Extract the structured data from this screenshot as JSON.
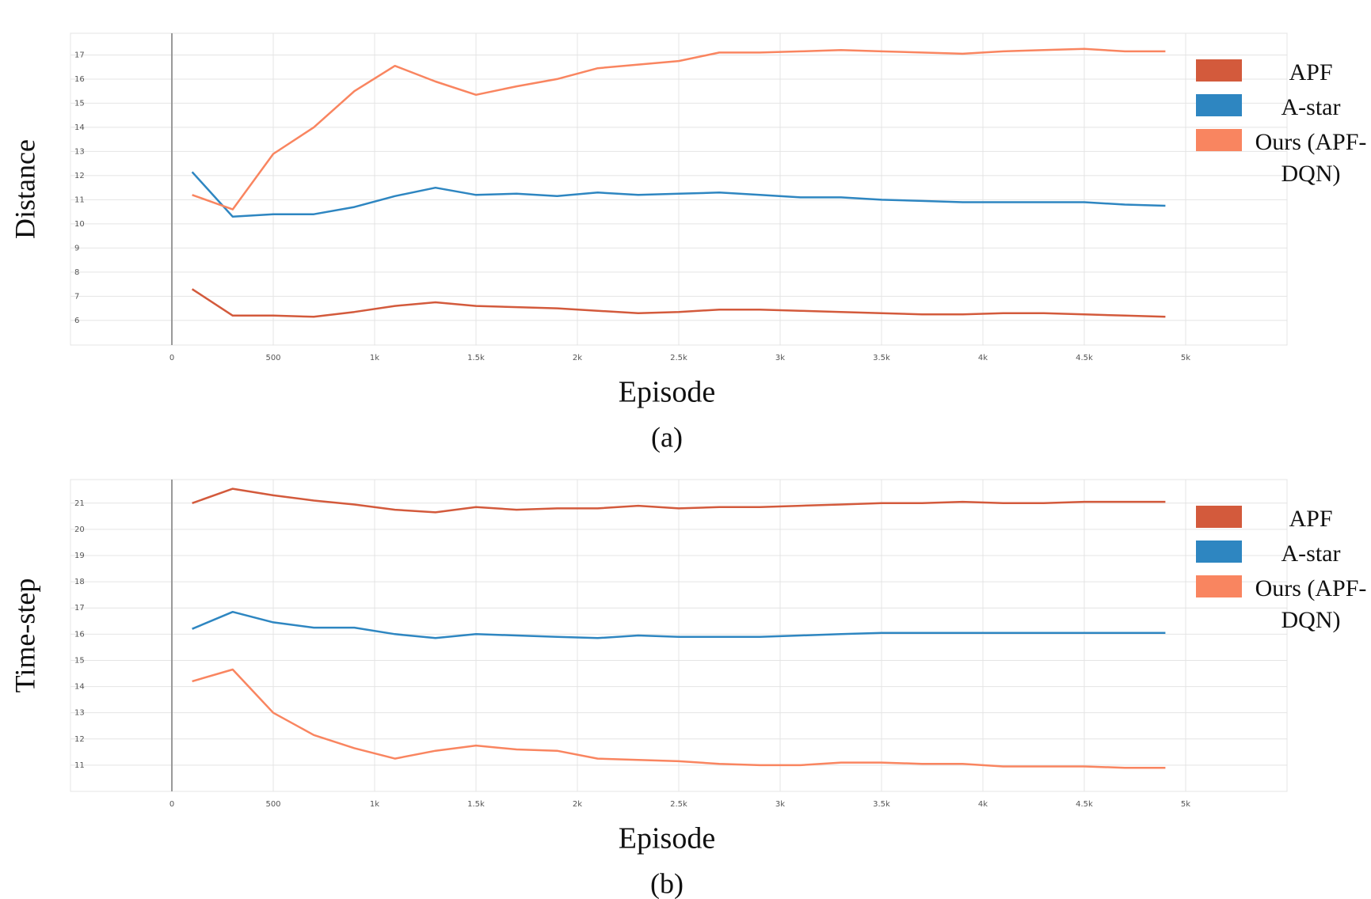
{
  "chart_data": [
    {
      "type": "line",
      "x_label": "Episode",
      "y_label": "Distance",
      "caption": "(a)",
      "x": [
        100,
        300,
        500,
        700,
        900,
        1100,
        1300,
        1500,
        1700,
        1900,
        2100,
        2300,
        2500,
        2700,
        2900,
        3100,
        3300,
        3500,
        3700,
        3900,
        4100,
        4300,
        4500,
        4700,
        4900
      ],
      "xlim": [
        -500,
        5500
      ],
      "ylim": [
        4.98,
        17.9
      ],
      "xticks": [
        0,
        500,
        {
          "value": 1000,
          "label": "1k"
        },
        {
          "value": 1500,
          "label": "1.5k"
        },
        {
          "value": 2000,
          "label": "2k"
        },
        {
          "value": 2500,
          "label": "2.5k"
        },
        {
          "value": 3000,
          "label": "3k"
        },
        {
          "value": 3500,
          "label": "3.5k"
        },
        {
          "value": 4000,
          "label": "4k"
        },
        {
          "value": 4500,
          "label": "4.5k"
        },
        {
          "value": 5000,
          "label": "5k"
        }
      ],
      "yticks": [
        6,
        7,
        8,
        9,
        10,
        11,
        12,
        13,
        14,
        15,
        16,
        17
      ],
      "grid": true,
      "series": [
        {
          "name": "APF",
          "color": "#d35a3c",
          "values": [
            7.3,
            6.2,
            6.2,
            6.15,
            6.35,
            6.6,
            6.75,
            6.6,
            6.55,
            6.5,
            6.4,
            6.3,
            6.35,
            6.45,
            6.45,
            6.4,
            6.35,
            6.3,
            6.25,
            6.25,
            6.3,
            6.3,
            6.25,
            6.2,
            6.15
          ]
        },
        {
          "name": "A-star",
          "color": "#2e86c1",
          "values": [
            12.15,
            10.3,
            10.4,
            10.4,
            10.7,
            11.15,
            11.5,
            11.2,
            11.25,
            11.15,
            11.3,
            11.2,
            11.25,
            11.3,
            11.2,
            11.1,
            11.1,
            11.0,
            10.95,
            10.9,
            10.9,
            10.9,
            10.9,
            10.8,
            10.75
          ]
        },
        {
          "name": "Ours (APF-DQN)",
          "color": "#f98560",
          "values": [
            11.2,
            10.6,
            12.9,
            14.0,
            15.5,
            16.55,
            15.9,
            15.35,
            15.7,
            16.0,
            16.45,
            16.6,
            16.75,
            17.1,
            17.1,
            17.15,
            17.2,
            17.15,
            17.1,
            17.05,
            17.15,
            17.2,
            17.25,
            17.15,
            17.15
          ]
        }
      ]
    },
    {
      "type": "line",
      "x_label": "Episode",
      "y_label": "Time-step",
      "caption": "(b)",
      "x": [
        100,
        300,
        500,
        700,
        900,
        1100,
        1300,
        1500,
        1700,
        1900,
        2100,
        2300,
        2500,
        2700,
        2900,
        3100,
        3300,
        3500,
        3700,
        3900,
        4100,
        4300,
        4500,
        4700,
        4900
      ],
      "xlim": [
        -500,
        5500
      ],
      "ylim": [
        10,
        21.9
      ],
      "xticks": [
        0,
        500,
        {
          "value": 1000,
          "label": "1k"
        },
        {
          "value": 1500,
          "label": "1.5k"
        },
        {
          "value": 2000,
          "label": "2k"
        },
        {
          "value": 2500,
          "label": "2.5k"
        },
        {
          "value": 3000,
          "label": "3k"
        },
        {
          "value": 3500,
          "label": "3.5k"
        },
        {
          "value": 4000,
          "label": "4k"
        },
        {
          "value": 4500,
          "label": "4.5k"
        },
        {
          "value": 5000,
          "label": "5k"
        }
      ],
      "yticks": [
        11,
        12,
        13,
        14,
        15,
        16,
        17,
        18,
        19,
        20,
        21
      ],
      "grid": true,
      "series": [
        {
          "name": "APF",
          "color": "#d35a3c",
          "values": [
            21.0,
            21.55,
            21.3,
            21.1,
            20.95,
            20.75,
            20.65,
            20.85,
            20.75,
            20.8,
            20.8,
            20.9,
            20.8,
            20.85,
            20.85,
            20.9,
            20.95,
            21.0,
            21.0,
            21.05,
            21.0,
            21.0,
            21.05,
            21.05,
            21.05
          ]
        },
        {
          "name": "A-star",
          "color": "#2e86c1",
          "values": [
            16.2,
            16.85,
            16.45,
            16.25,
            16.25,
            16.0,
            15.85,
            16.0,
            15.95,
            15.9,
            15.85,
            15.95,
            15.9,
            15.9,
            15.9,
            15.95,
            16.0,
            16.05,
            16.05,
            16.05,
            16.05,
            16.05,
            16.05,
            16.05,
            16.05
          ]
        },
        {
          "name": "Ours (APF-DQN)",
          "color": "#f98560",
          "values": [
            14.2,
            14.65,
            13.0,
            12.15,
            11.65,
            11.25,
            11.55,
            11.75,
            11.6,
            11.55,
            11.25,
            11.2,
            11.15,
            11.05,
            11.0,
            11.0,
            11.1,
            11.1,
            11.05,
            11.05,
            10.95,
            10.95,
            10.95,
            10.9,
            10.9
          ]
        }
      ]
    }
  ]
}
